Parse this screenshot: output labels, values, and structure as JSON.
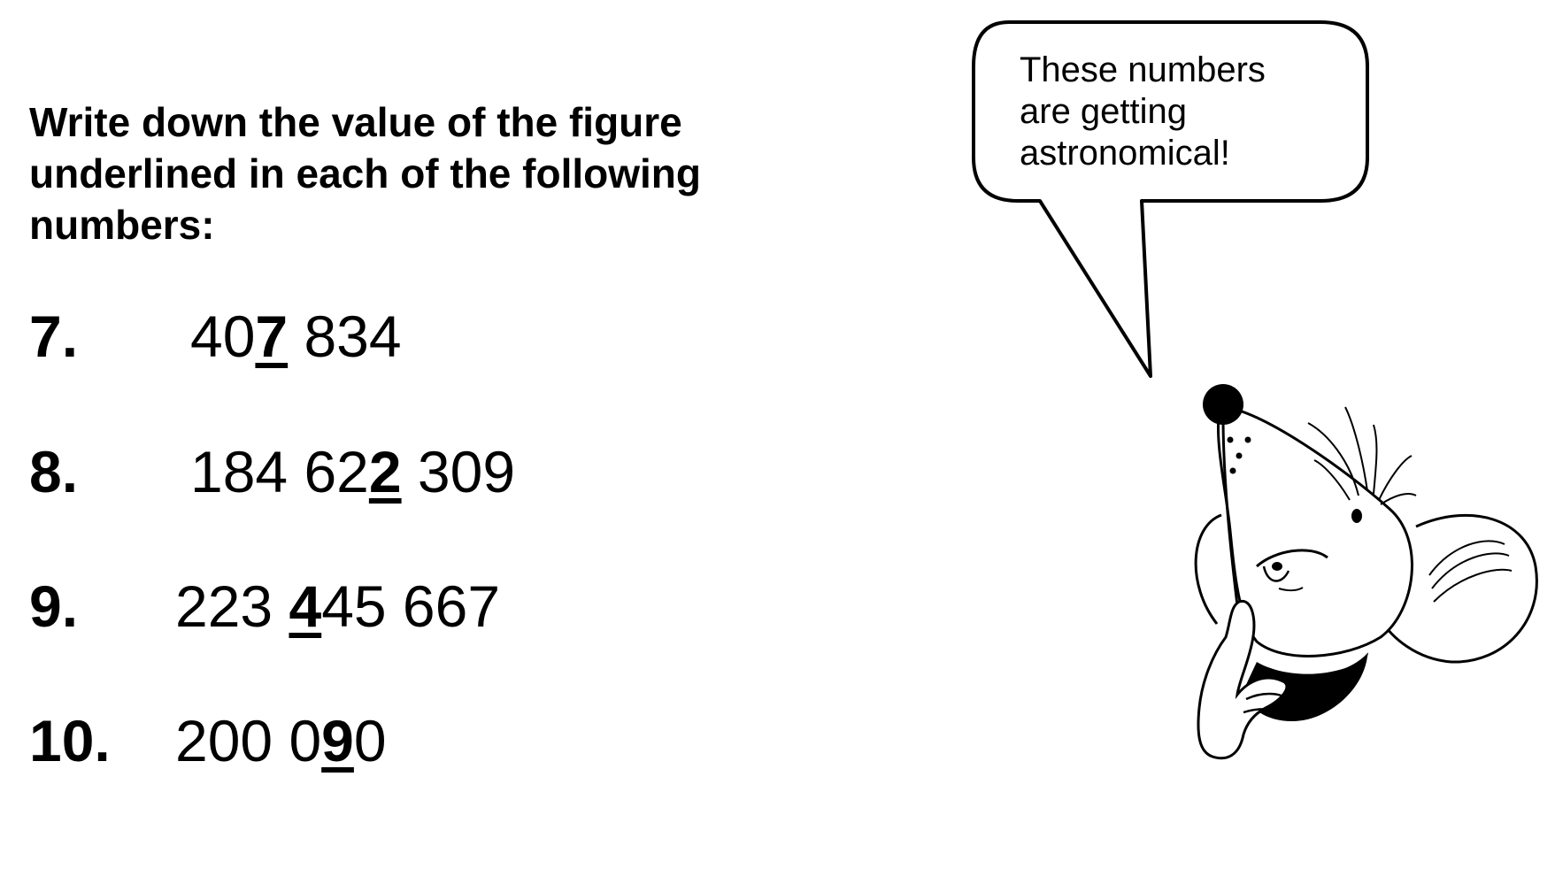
{
  "instruction": {
    "line1": "Write down the value of the figure",
    "line2": "underlined in each of the following",
    "line3": "numbers:"
  },
  "questions": [
    {
      "number": "7.",
      "before": "40",
      "highlight": "7",
      "after": " 834"
    },
    {
      "number": "8.",
      "before": "184 62",
      "highlight": "2",
      "after": " 309"
    },
    {
      "number": "9.",
      "before": "223 ",
      "highlight": "4",
      "after": "45 667"
    },
    {
      "number": "10.",
      "before": "200 0",
      "highlight": "9",
      "after": "0"
    }
  ],
  "speech_bubble": {
    "line1": "These numbers",
    "line2": "are getting",
    "line3": "astronomical!"
  },
  "illustration": {
    "icon": "thinking-mouse-icon"
  }
}
